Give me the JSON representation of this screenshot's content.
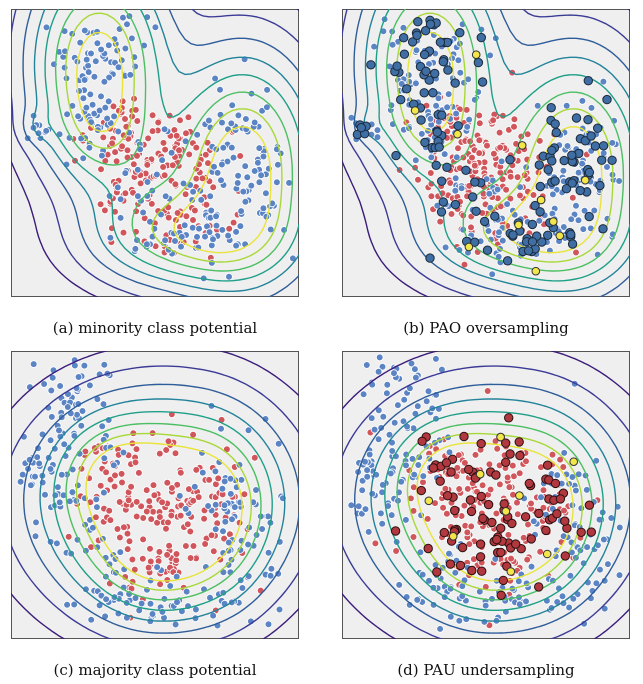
{
  "figure": {
    "panels": [
      {
        "id": "a",
        "caption": "(a) minority class potential",
        "potential": "minority",
        "overlay": "none"
      },
      {
        "id": "b",
        "caption": "(b) PAO oversampling",
        "potential": "minority",
        "overlay": "oversampling"
      },
      {
        "id": "c",
        "caption": "(c) majority class potential",
        "potential": "majority",
        "overlay": "none"
      },
      {
        "id": "d",
        "caption": "(d) PAU undersampling",
        "potential": "majority",
        "overlay": "undersampling"
      }
    ]
  },
  "colors": {
    "background": "#efefef",
    "frame": "#555555",
    "minority_point": "#5b84c4",
    "majority_point": "#d0565c",
    "synthetic_point": "#3f6ea4",
    "kept_majority_point": "#b0383e",
    "highlight_point": "#f3e64a",
    "contours": [
      "#3b1c7a",
      "#3b3b96",
      "#2f5d9a",
      "#23839a",
      "#1f9f88",
      "#4cbf63",
      "#a8d838",
      "#e8e43a"
    ]
  },
  "icons": {
    "point": "circle-marker"
  }
}
